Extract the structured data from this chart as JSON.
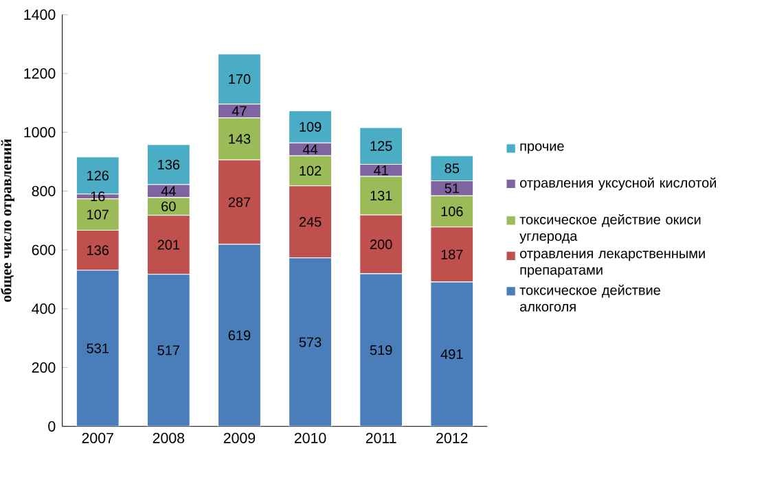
{
  "chart_data": {
    "type": "bar",
    "stacked": true,
    "ylabel": "общее число отравлений",
    "categories": [
      "2007",
      "2008",
      "2009",
      "2010",
      "2011",
      "2012"
    ],
    "series": [
      {
        "name": "токсическое действие алкоголя",
        "color": "#4a7ebb",
        "values": [
          531,
          517,
          619,
          573,
          519,
          491
        ]
      },
      {
        "name": "отравления лекарственными препаратами",
        "color": "#c0504d",
        "values": [
          136,
          201,
          287,
          245,
          200,
          187
        ]
      },
      {
        "name": "токсическое действие окиси углерода",
        "color": "#9bbb59",
        "values": [
          107,
          60,
          143,
          102,
          131,
          106
        ]
      },
      {
        "name": "отравления уксусной кислотой",
        "color": "#8064a2",
        "values": [
          16,
          44,
          47,
          44,
          41,
          51
        ]
      },
      {
        "name": "прочие",
        "color": "#4bacc6",
        "values": [
          126,
          136,
          170,
          109,
          125,
          85
        ]
      }
    ],
    "ylim": [
      0,
      1400
    ],
    "yticks": [
      0,
      200,
      400,
      600,
      800,
      1000,
      1200,
      1400
    ],
    "legend": "right",
    "data_labels": true
  }
}
